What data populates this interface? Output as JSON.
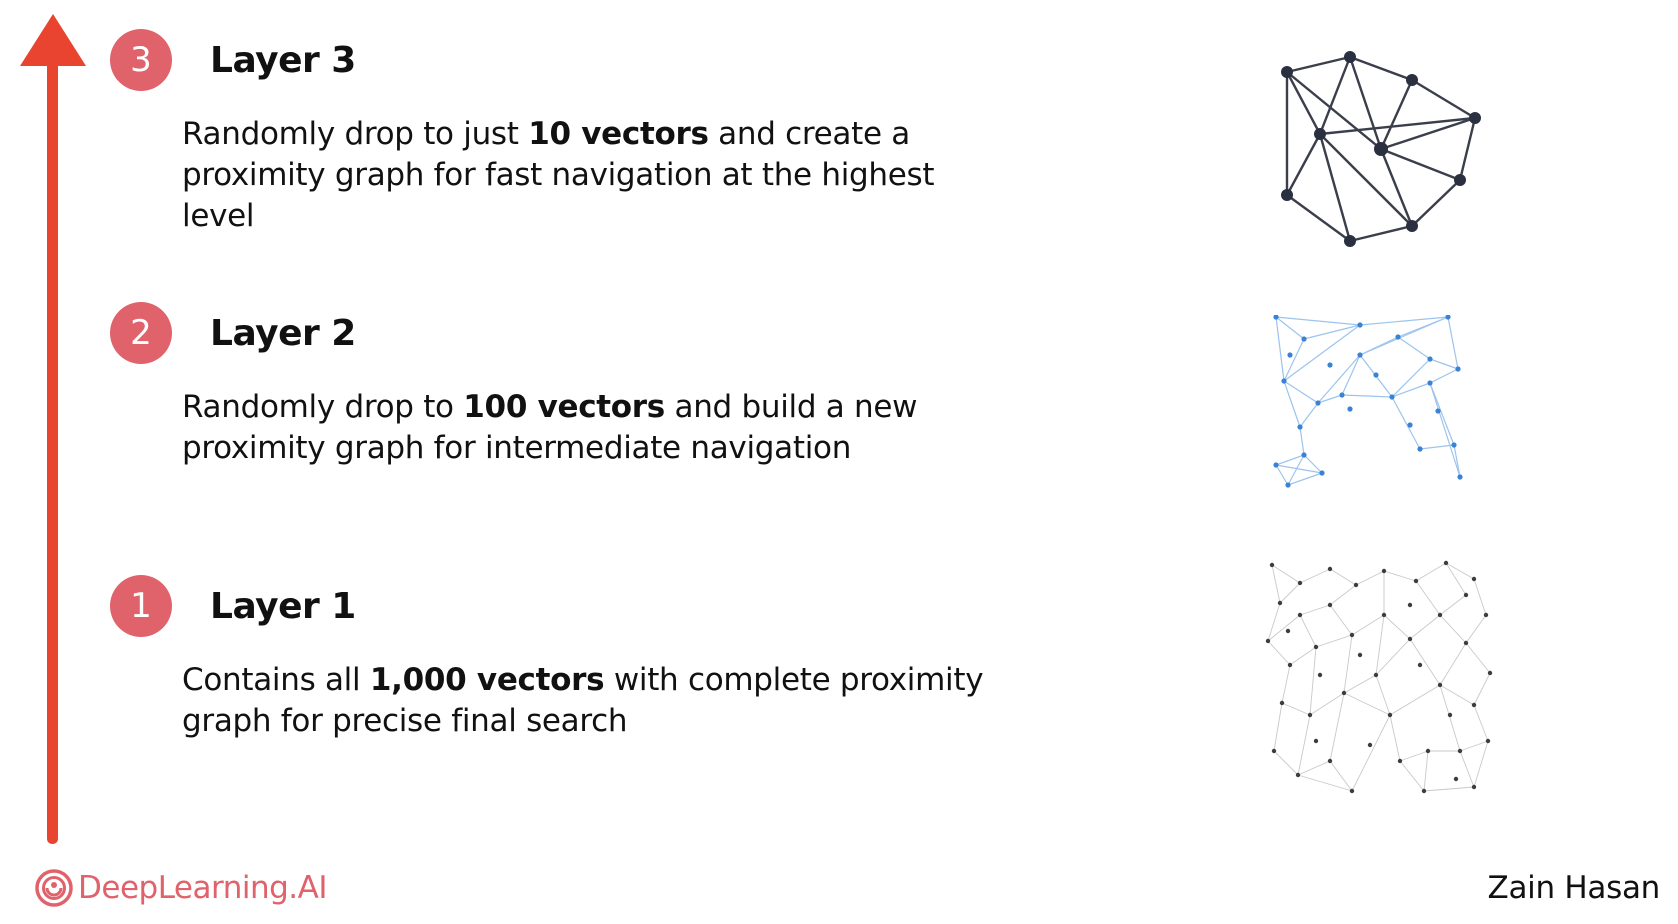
{
  "colors": {
    "accent": "#e0636b",
    "arrow": "#e8442f",
    "graph_top": "#3a3f4b",
    "graph_mid": "#4a90d9",
    "graph_base": "#444444"
  },
  "layers": {
    "layer3": {
      "number": "3",
      "title": "Layer 3",
      "desc_pre": "Randomly drop to just ",
      "desc_bold": "10 vectors",
      "desc_post": " and create a proximity graph for fast navigation at the highest level"
    },
    "layer2": {
      "number": "2",
      "title": "Layer 2",
      "desc_pre": "Randomly drop to ",
      "desc_bold": "100 vectors",
      "desc_post": " and build a new proximity graph for intermediate navigation"
    },
    "layer1": {
      "number": "1",
      "title": "Layer 1",
      "desc_pre": "Contains all ",
      "desc_bold": "1,000 vectors",
      "desc_post": " with complete proximity graph for precise final search"
    }
  },
  "icons": {
    "arrow": "up-arrow-icon",
    "logo": "deeplearning-ai-logo-icon"
  },
  "footer": {
    "brand": "DeepLearning.AI",
    "author": "Zain Hasan"
  }
}
